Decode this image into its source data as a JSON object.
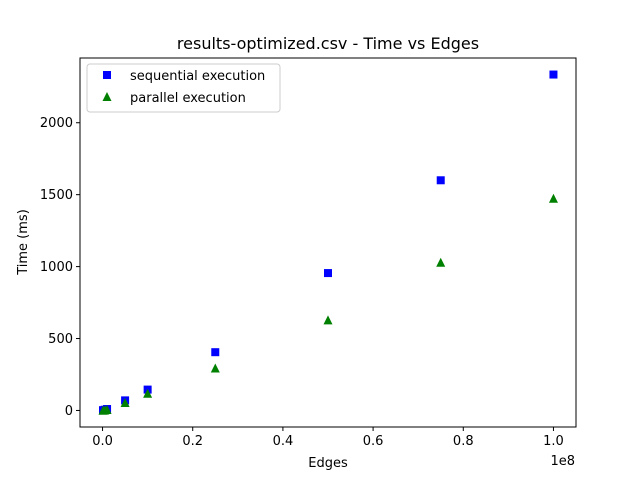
{
  "chart_data": {
    "type": "scatter",
    "title": "results-optimized.csv - Time vs Edges",
    "xlabel": "Edges",
    "ylabel": "Time (ms)",
    "x_offset_label": "1e8",
    "x_scale": 100000000,
    "xlim": [
      -5000000,
      105000000
    ],
    "ylim": [
      -115,
      2450
    ],
    "xticks": [
      0,
      20000000,
      40000000,
      60000000,
      80000000,
      100000000
    ],
    "xtick_labels": [
      "0.0",
      "0.2",
      "0.4",
      "0.6",
      "0.8",
      "1.0"
    ],
    "yticks": [
      0,
      500,
      1000,
      1500,
      2000
    ],
    "ytick_labels": [
      "0",
      "500",
      "1000",
      "1500",
      "2000"
    ],
    "grid": false,
    "legend_position": "upper-left",
    "series": [
      {
        "name": "sequential execution",
        "marker": "square",
        "color": "#0000ff",
        "x": [
          100000,
          500000,
          1000000,
          5000000,
          10000000,
          25000000,
          50000000,
          75000000,
          100000000
        ],
        "y": [
          2,
          5,
          10,
          70,
          145,
          405,
          955,
          1600,
          2335
        ]
      },
      {
        "name": "parallel execution",
        "marker": "triangle",
        "color": "#008000",
        "x": [
          100000,
          500000,
          1000000,
          5000000,
          10000000,
          25000000,
          50000000,
          75000000,
          100000000
        ],
        "y": [
          1,
          3,
          7,
          55,
          120,
          295,
          630,
          1030,
          1475
        ]
      }
    ]
  }
}
